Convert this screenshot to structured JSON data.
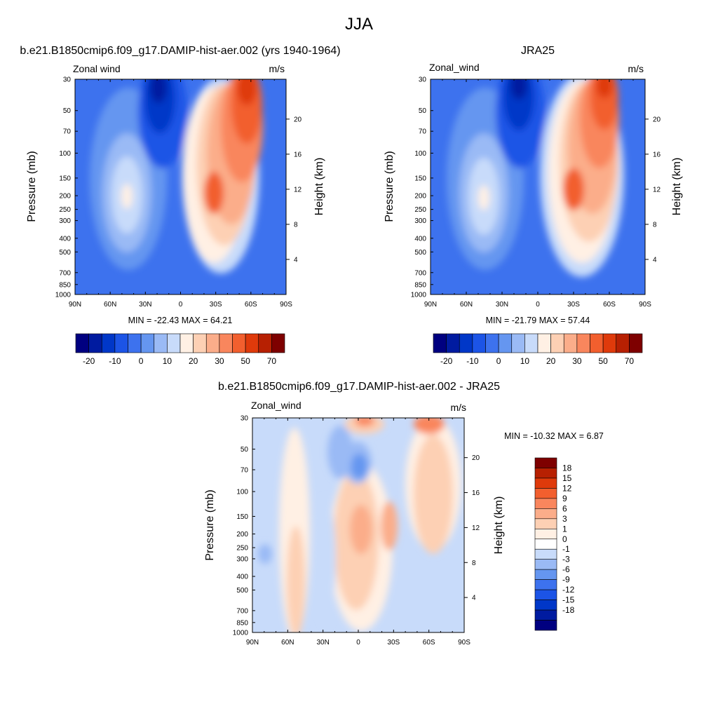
{
  "figure": {
    "title": "JJA"
  },
  "colors": {
    "absolute_scale": [
      "#000080",
      "#001ba0",
      "#0037c8",
      "#1c54e6",
      "#3d72ee",
      "#6596f0",
      "#9abaf5",
      "#c8dbfa",
      "#fff0e4",
      "#fdd0b4",
      "#fbad8a",
      "#f9865d",
      "#f25f2e",
      "#df3a0b",
      "#b72002",
      "#7e0000"
    ],
    "difference_scale": [
      "#000080",
      "#001ba0",
      "#0037c8",
      "#1c54e6",
      "#3d72ee",
      "#6596f0",
      "#9abaf5",
      "#c8dbfa",
      "#ffffff",
      "#fff0e4",
      "#fdd0b4",
      "#fbad8a",
      "#f9865d",
      "#f25f2e",
      "#df3a0b",
      "#b72002",
      "#7e0000"
    ]
  },
  "chart_data": [
    {
      "type": "heatmap",
      "title": "b.e21.B1850cmip6.f09_g17.DAMIP-hist-aer.002 (yrs 1940-1964)",
      "left_string": "Zonal wind",
      "right_string": "m/s",
      "xlabel": "",
      "ylabel": "Pressure (mb)",
      "ylabel_right": "Height (km)",
      "x_ticks": [
        "90N",
        "60N",
        "30N",
        "0",
        "30S",
        "60S",
        "90S"
      ],
      "y_ticks": [
        "30",
        "50",
        "70",
        "100",
        "150",
        "200",
        "250",
        "300",
        "400",
        "500",
        "700",
        "850",
        "1000"
      ],
      "y_ticks_right": [
        "20",
        "16",
        "12",
        "8",
        "4"
      ],
      "xlim": [
        90,
        -90
      ],
      "ylim": [
        1000,
        30
      ],
      "min_max_text": "MIN = -22.43  MAX =  64.21",
      "colorbar_labels": [
        "-20",
        "-10",
        "0",
        "10",
        "20",
        "30",
        "50",
        "70"
      ]
    },
    {
      "type": "heatmap",
      "title": "JRA25",
      "left_string": "Zonal_wind",
      "right_string": "m/s",
      "xlabel": "",
      "ylabel": "Pressure (mb)",
      "ylabel_right": "Height (km)",
      "x_ticks": [
        "90N",
        "60N",
        "30N",
        "0",
        "30S",
        "60S",
        "90S"
      ],
      "y_ticks": [
        "30",
        "50",
        "70",
        "100",
        "150",
        "200",
        "250",
        "300",
        "400",
        "500",
        "700",
        "850",
        "1000"
      ],
      "y_ticks_right": [
        "20",
        "16",
        "12",
        "8",
        "4"
      ],
      "xlim": [
        90,
        -90
      ],
      "ylim": [
        1000,
        30
      ],
      "min_max_text": "MIN = -21.79  MAX =  57.44",
      "colorbar_labels": [
        "-20",
        "-10",
        "0",
        "10",
        "20",
        "30",
        "50",
        "70"
      ]
    },
    {
      "type": "heatmap",
      "title": "b.e21.B1850cmip6.f09_g17.DAMIP-hist-aer.002 - JRA25",
      "left_string": "Zonal_wind",
      "right_string": "m/s",
      "xlabel": "",
      "ylabel": "Pressure (mb)",
      "ylabel_right": "Height (km)",
      "x_ticks": [
        "90N",
        "60N",
        "30N",
        "0",
        "30S",
        "60S",
        "90S"
      ],
      "y_ticks": [
        "30",
        "50",
        "70",
        "100",
        "150",
        "200",
        "250",
        "300",
        "400",
        "500",
        "700",
        "850",
        "1000"
      ],
      "y_ticks_right": [
        "20",
        "16",
        "12",
        "8",
        "4"
      ],
      "xlim": [
        90,
        -90
      ],
      "ylim": [
        1000,
        30
      ],
      "min_max_text": "MIN = -10.32  MAX =   6.87",
      "colorbar_labels": [
        "18",
        "15",
        "12",
        "9",
        "6",
        "3",
        "1",
        "0",
        "-1",
        "-3",
        "-6",
        "-9",
        "-12",
        "-15",
        "-18"
      ]
    }
  ]
}
